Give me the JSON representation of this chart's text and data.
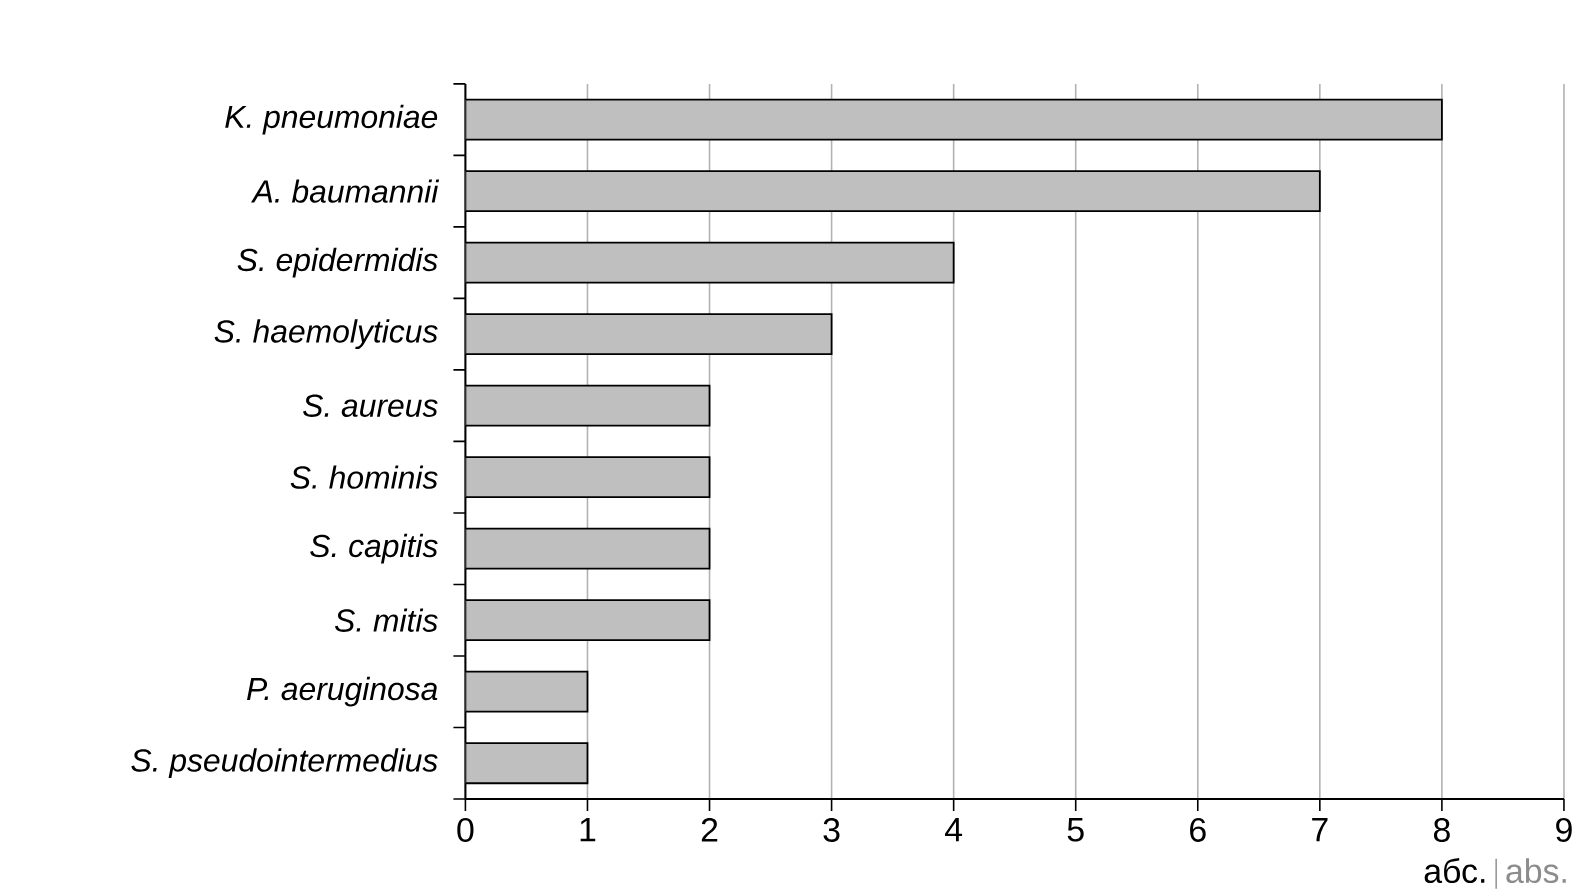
{
  "chart_data": {
    "type": "bar",
    "orientation": "horizontal",
    "categories": [
      "K. pneumoniae",
      "A. baumannii",
      "S. epidermidis",
      "S. haemolyticus",
      "S. aureus",
      "S. hominis",
      "S. capitis",
      "S. mitis",
      "P. aeruginosa",
      "S. pseudointermedius"
    ],
    "values": [
      8,
      7,
      4,
      3,
      2,
      2,
      2,
      2,
      1,
      1
    ],
    "color": "#bfbfbf",
    "xlim": [
      0,
      9
    ],
    "xticks": [
      0,
      1,
      2,
      3,
      4,
      5,
      6,
      7,
      8,
      9
    ],
    "grid": "x",
    "xlabel": "абс.",
    "annotations": [
      "abs."
    ]
  }
}
